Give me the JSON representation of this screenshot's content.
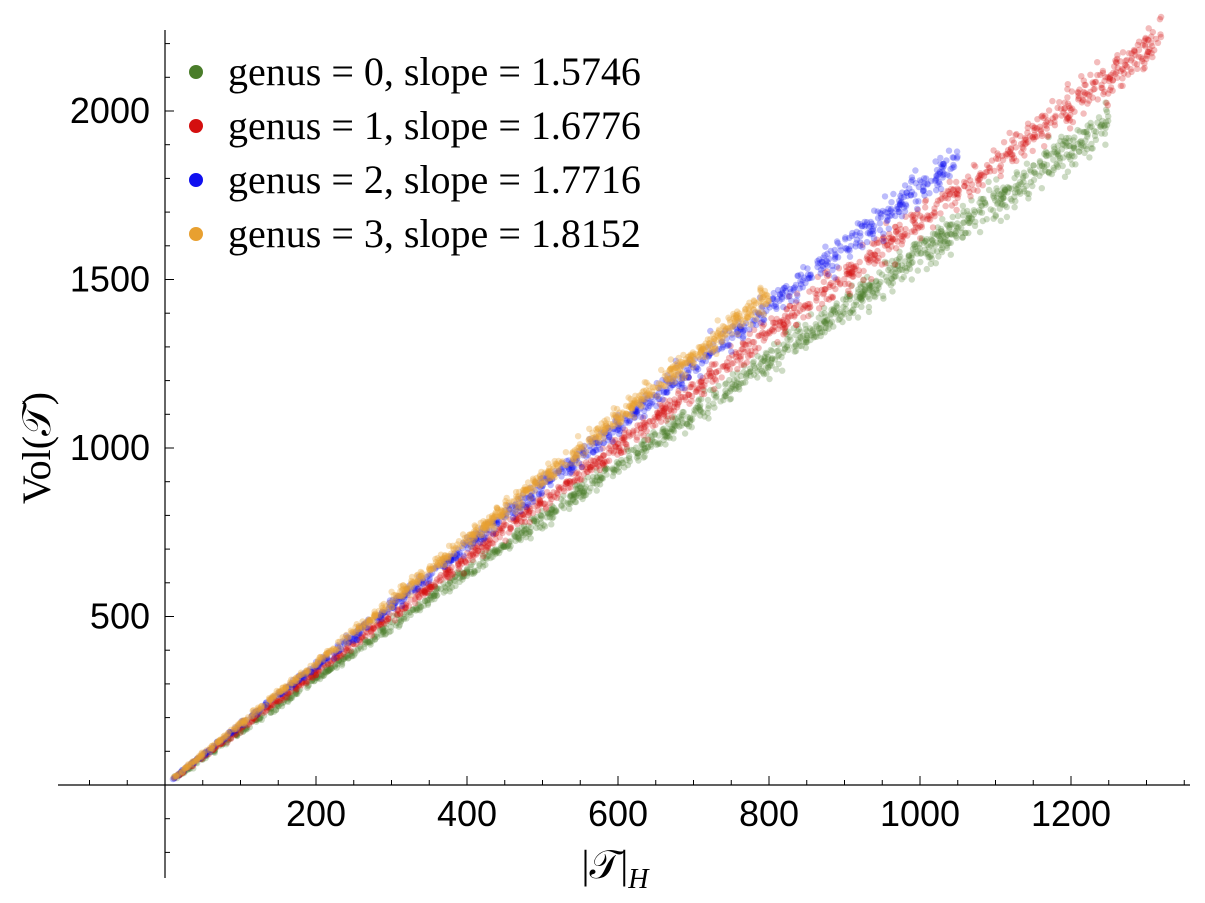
{
  "chart_data": {
    "type": "scatter",
    "xlabel": "|𝒯|",
    "xlabel_subscript": "H",
    "ylabel": "Vol(𝒯)",
    "xlim": [
      0,
      1350
    ],
    "ylim": [
      -280,
      2250
    ],
    "x_ticks": [
      200,
      400,
      600,
      800,
      1000,
      1200
    ],
    "y_ticks": [
      500,
      1000,
      1500,
      2000
    ],
    "x_tick_labels": [
      "200",
      "400",
      "600",
      "800",
      "1000",
      "1200"
    ],
    "y_tick_labels": [
      "500",
      "1000",
      "1500",
      "2000"
    ],
    "grid": false,
    "legend_position": "top-left",
    "series": [
      {
        "name": "genus = 0, slope = 1.5746",
        "slope": 1.5746,
        "x_range": [
          10,
          1250
        ],
        "color": "#4a7d2a",
        "opacity": 0.28
      },
      {
        "name": "genus = 1, slope = 1.6776",
        "slope": 1.6776,
        "x_range": [
          10,
          1320
        ],
        "color": "#d40f0f",
        "opacity": 0.28
      },
      {
        "name": "genus = 2, slope = 1.7716",
        "slope": 1.7716,
        "x_range": [
          10,
          1050
        ],
        "color": "#1010f0",
        "opacity": 0.28
      },
      {
        "name": "genus = 3, slope = 1.8152",
        "slope": 1.8152,
        "x_range": [
          10,
          800
        ],
        "color": "#e8a030",
        "opacity": 0.35
      }
    ]
  }
}
